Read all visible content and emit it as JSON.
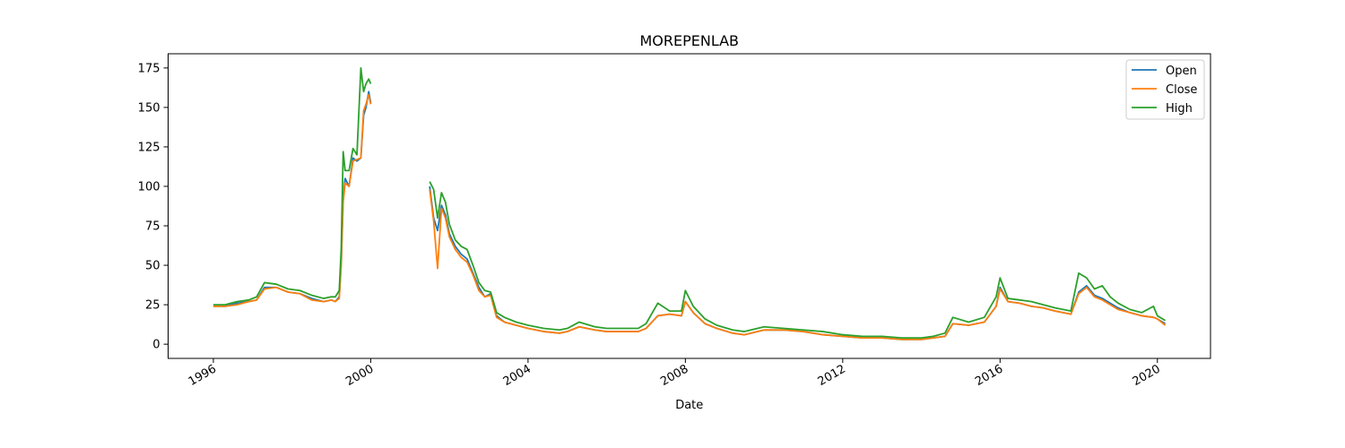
{
  "chart_data": {
    "type": "line",
    "title": "MOREPENLAB",
    "xlabel": "Date",
    "ylabel": "",
    "xlim": [
      1994.85,
      2021.35
    ],
    "ylim": [
      -9,
      184
    ],
    "x_ticks": [
      1996,
      2000,
      2004,
      2008,
      2012,
      2016,
      2020
    ],
    "x_tick_labels": [
      "1996",
      "2000",
      "2004",
      "2008",
      "2012",
      "2016",
      "2020"
    ],
    "y_ticks": [
      0,
      25,
      50,
      75,
      100,
      125,
      150,
      175
    ],
    "y_tick_labels": [
      "0",
      "25",
      "50",
      "75",
      "100",
      "125",
      "150",
      "175"
    ],
    "grid": false,
    "legend_position": "top-right",
    "x": [
      1996.0,
      1996.3,
      1996.6,
      1996.9,
      1997.1,
      1997.3,
      1997.6,
      1997.9,
      1998.2,
      1998.5,
      1998.8,
      1999.0,
      1999.1,
      1999.2,
      1999.25,
      1999.3,
      1999.35,
      1999.45,
      1999.55,
      1999.65,
      1999.75,
      1999.82,
      1999.88,
      1999.95,
      2000.0,
      2001.5,
      2001.6,
      2001.7,
      2001.8,
      2001.9,
      2002.0,
      2002.15,
      2002.3,
      2002.45,
      2002.6,
      2002.75,
      2002.9,
      2003.05,
      2003.2,
      2003.4,
      2003.7,
      2004.0,
      2004.4,
      2004.8,
      2005.0,
      2005.3,
      2005.7,
      2006.0,
      2006.4,
      2006.8,
      2007.0,
      2007.3,
      2007.6,
      2007.9,
      2008.0,
      2008.2,
      2008.5,
      2008.8,
      2009.2,
      2009.5,
      2010.0,
      2010.5,
      2011.0,
      2011.5,
      2012.0,
      2012.5,
      2013.0,
      2013.5,
      2014.0,
      2014.3,
      2014.6,
      2014.8,
      2015.2,
      2015.6,
      2015.9,
      2016.0,
      2016.2,
      2016.5,
      2016.8,
      2017.1,
      2017.4,
      2017.8,
      2018.0,
      2018.2,
      2018.4,
      2018.6,
      2018.8,
      2019.0,
      2019.3,
      2019.6,
      2019.9,
      2020.0,
      2020.2
    ],
    "series": [
      {
        "name": "Open",
        "color": "#1f77b4",
        "values": [
          24,
          24,
          26,
          27,
          28,
          36,
          36,
          33,
          32,
          29,
          27,
          28,
          27,
          30,
          52,
          92,
          105,
          100,
          118,
          116,
          118,
          145,
          150,
          160,
          153,
          100,
          80,
          72,
          88,
          82,
          70,
          62,
          57,
          54,
          45,
          36,
          30,
          32,
          18,
          14,
          12,
          10,
          8,
          7,
          8,
          11,
          9,
          8,
          8,
          8,
          10,
          18,
          19,
          18,
          27,
          20,
          13,
          10,
          7,
          6,
          9,
          9,
          8,
          6,
          5,
          4,
          4,
          3,
          3,
          4,
          5,
          13,
          12,
          14,
          24,
          36,
          27,
          26,
          24,
          23,
          21,
          19,
          33,
          37,
          31,
          29,
          26,
          23,
          20,
          18,
          17,
          16,
          13
        ]
      },
      {
        "name": "Close",
        "color": "#ff7f0e",
        "values": [
          24,
          24,
          25,
          27,
          28,
          35,
          36,
          33,
          32,
          28,
          27,
          28,
          27,
          29,
          50,
          90,
          102,
          100,
          116,
          117,
          118,
          148,
          152,
          158,
          152,
          98,
          78,
          48,
          86,
          80,
          68,
          60,
          55,
          52,
          44,
          34,
          30,
          31,
          17,
          14,
          12,
          10,
          8,
          7,
          8,
          11,
          9,
          8,
          8,
          8,
          10,
          18,
          19,
          18,
          27,
          20,
          13,
          10,
          7,
          6,
          9,
          9,
          8,
          6,
          5,
          4,
          4,
          3,
          3,
          4,
          5,
          13,
          12,
          14,
          24,
          35,
          27,
          26,
          24,
          23,
          21,
          19,
          32,
          36,
          30,
          28,
          25,
          22,
          20,
          18,
          17,
          16,
          12
        ]
      },
      {
        "name": "High",
        "color": "#2ca02c",
        "values": [
          25,
          25,
          27,
          28,
          30,
          39,
          38,
          35,
          34,
          31,
          29,
          30,
          30,
          34,
          60,
          122,
          110,
          110,
          124,
          120,
          175,
          160,
          165,
          168,
          165,
          103,
          98,
          80,
          96,
          90,
          76,
          66,
          62,
          60,
          50,
          39,
          34,
          33,
          20,
          17,
          14,
          12,
          10,
          9,
          10,
          14,
          11,
          10,
          10,
          10,
          13,
          26,
          21,
          21,
          34,
          24,
          16,
          12,
          9,
          8,
          11,
          10,
          9,
          8,
          6,
          5,
          5,
          4,
          4,
          5,
          7,
          17,
          14,
          17,
          30,
          42,
          29,
          28,
          27,
          25,
          23,
          21,
          45,
          42,
          35,
          37,
          30,
          26,
          22,
          20,
          24,
          18,
          15
        ]
      }
    ]
  }
}
